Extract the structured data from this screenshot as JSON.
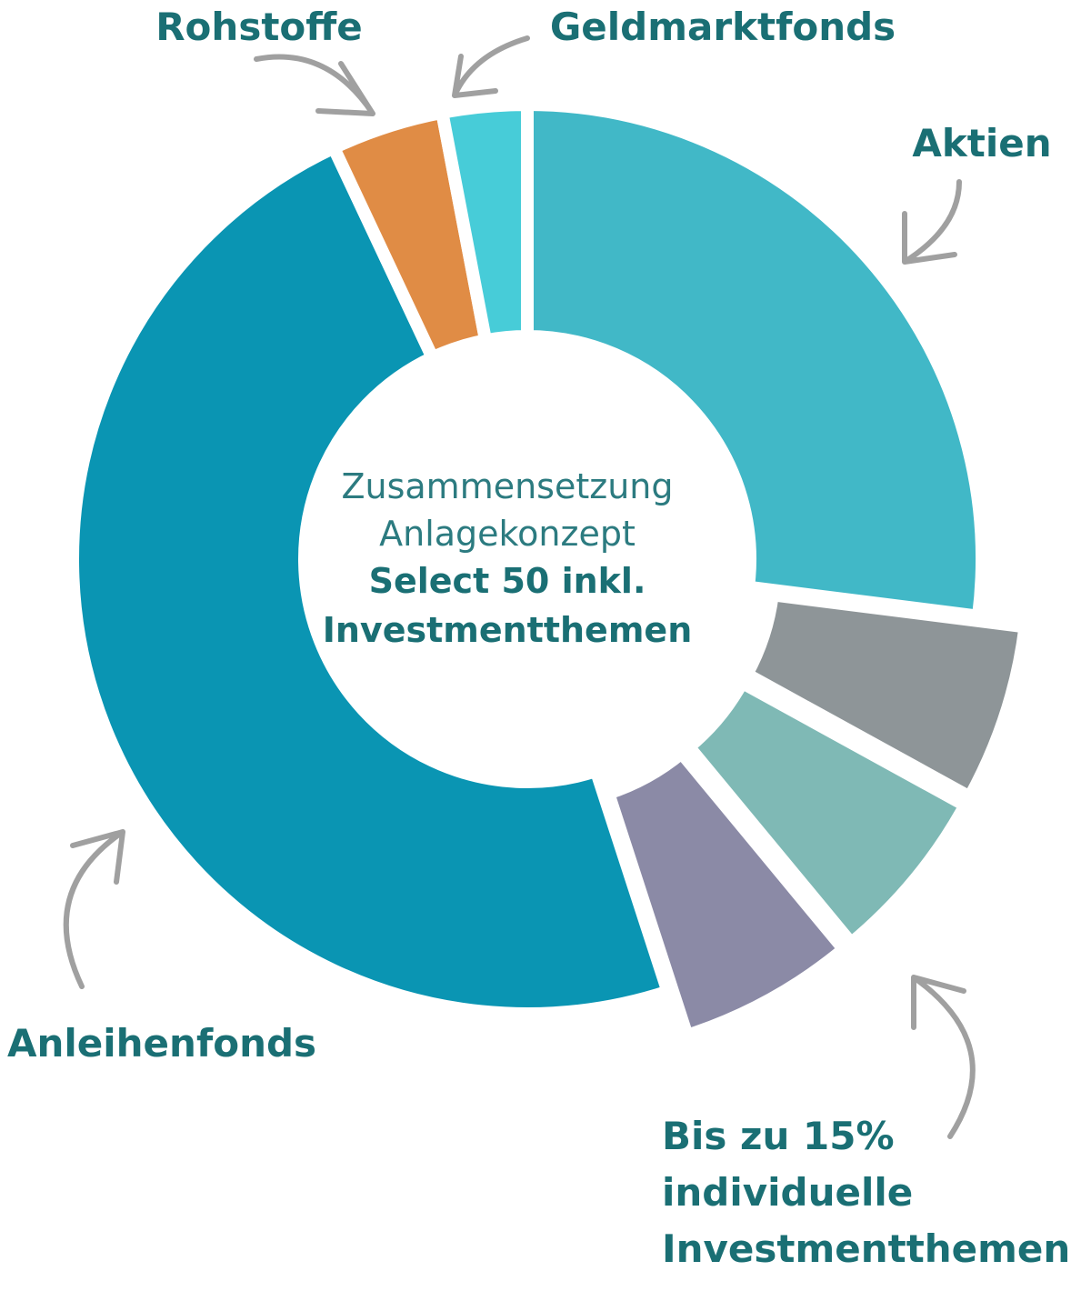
{
  "chart_data": {
    "type": "pie",
    "categories": [
      "Aktien",
      null,
      null,
      null,
      "Anleihenfonds",
      "Rohstoffe",
      "Geldmarktfonds"
    ],
    "values": [
      27,
      6,
      6,
      6,
      48,
      4,
      3
    ],
    "colors": [
      "#41b8c7",
      "#8e9598",
      "#7fb9b5",
      "#8b8aa6",
      "#0a95b3",
      "#e08c45",
      "#47ccd8"
    ],
    "center_text": [
      "Zusammensetzung",
      "Anlagekonzept"
    ],
    "center_text_bold": [
      "Select 50 inkl.",
      "Investmentthemen"
    ],
    "annotation": [
      "Bis zu 15%",
      "individuelle",
      "Investmentthemen"
    ]
  }
}
